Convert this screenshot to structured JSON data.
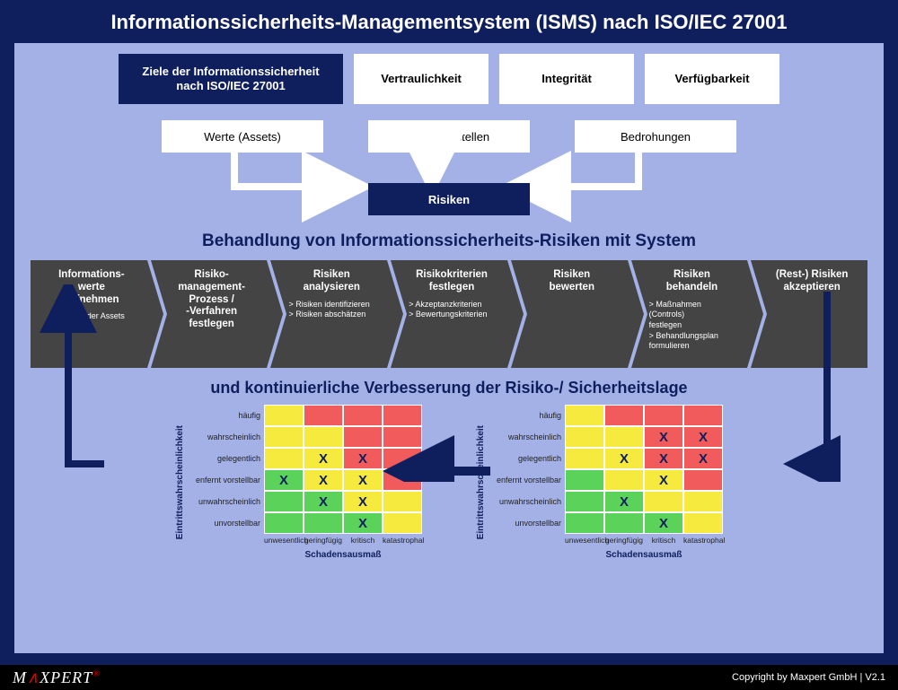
{
  "colors": {
    "outer_bg": "#0f1f5e",
    "inner_bg": "#a3b1e6",
    "box_dark_bg": "#0f1f5e",
    "box_white_bg": "#ffffff",
    "chevron_bg": "#444444",
    "matrix_green": "#5bd35b",
    "matrix_yellow": "#f6ea3f",
    "matrix_red": "#f25b5b",
    "arrow": "#0f1f5e",
    "header_text": "#0f1f5e"
  },
  "title": "Informationssicherheits-Managementsystem (ISMS) nach ISO/IEC 27001",
  "row1": {
    "goals": "Ziele der Informationssicherheit nach ISO/IEC 27001",
    "c1": "Vertraulichkeit",
    "c2": "Integrität",
    "c3": "Verfügbarkeit"
  },
  "row2": {
    "a": "Werte (Assets)",
    "b": "Schwachstellen",
    "c": "Bedrohungen"
  },
  "risiken": "Risiken",
  "sec_h": "Behandlung von Informationssicherheits-Risiken mit System",
  "process": [
    {
      "t": "Informations-\nwerte\naufnehmen",
      "sub": "> Inventar der Assets"
    },
    {
      "t": "Risiko-\nmanagement-\nProzess /\n-Verfahren\nfestlegen",
      "sub": ""
    },
    {
      "t": "Risiken\nanalysieren",
      "sub": "> Risiken identifizieren\n> Risiken abschätzen"
    },
    {
      "t": "Risikokriterien\nfestlegen",
      "sub": "> Akzeptanzkriterien\n> Bewertungskriterien"
    },
    {
      "t": "Risiken\nbewerten",
      "sub": ""
    },
    {
      "t": "Risiken\nbehandeln",
      "sub": "> Maßnahmen (Controls)\n   festlegen\n> Behandlungsplan\n   formulieren"
    },
    {
      "t": "(Rest-) Risiken\nakzeptieren",
      "sub": ""
    }
  ],
  "sec_h2": "und kontinuierliche Verbesserung der Risiko-/ Sicherheitslage",
  "matrix_meta": {
    "ylabel": "Eintrittswahrscheinlichkeit",
    "xlabel": "Schadensausmaß",
    "rows": [
      "häufig",
      "wahrscheinlich",
      "gelegentlich",
      "enfernt vorstellbar",
      "unwahrscheinlich",
      "unvorstellbar"
    ],
    "cols": [
      "unwesentlich",
      "geringfügig",
      "kritisch",
      "katastrophal"
    ],
    "color_map": [
      [
        "y",
        "r",
        "r",
        "r"
      ],
      [
        "y",
        "y",
        "r",
        "r"
      ],
      [
        "y",
        "y",
        "r",
        "r"
      ],
      [
        "g",
        "y",
        "y",
        "r"
      ],
      [
        "g",
        "g",
        "y",
        "y"
      ],
      [
        "g",
        "g",
        "g",
        "y"
      ]
    ]
  },
  "matrix_left_marks": [
    [
      0,
      0,
      0,
      0
    ],
    [
      0,
      0,
      0,
      0
    ],
    [
      0,
      1,
      1,
      0
    ],
    [
      1,
      1,
      1,
      0
    ],
    [
      0,
      1,
      1,
      0
    ],
    [
      0,
      0,
      1,
      0
    ]
  ],
  "matrix_right_marks": [
    [
      0,
      0,
      0,
      0
    ],
    [
      0,
      0,
      1,
      1
    ],
    [
      0,
      1,
      1,
      1
    ],
    [
      0,
      0,
      1,
      0
    ],
    [
      0,
      1,
      0,
      0
    ],
    [
      0,
      0,
      1,
      0
    ]
  ],
  "footer": {
    "logo_pre": "M",
    "logo_mid": "∧",
    "logo_post": "XPERT",
    "copyright": "Copyright by Maxpert GmbH  |  V2.1"
  }
}
